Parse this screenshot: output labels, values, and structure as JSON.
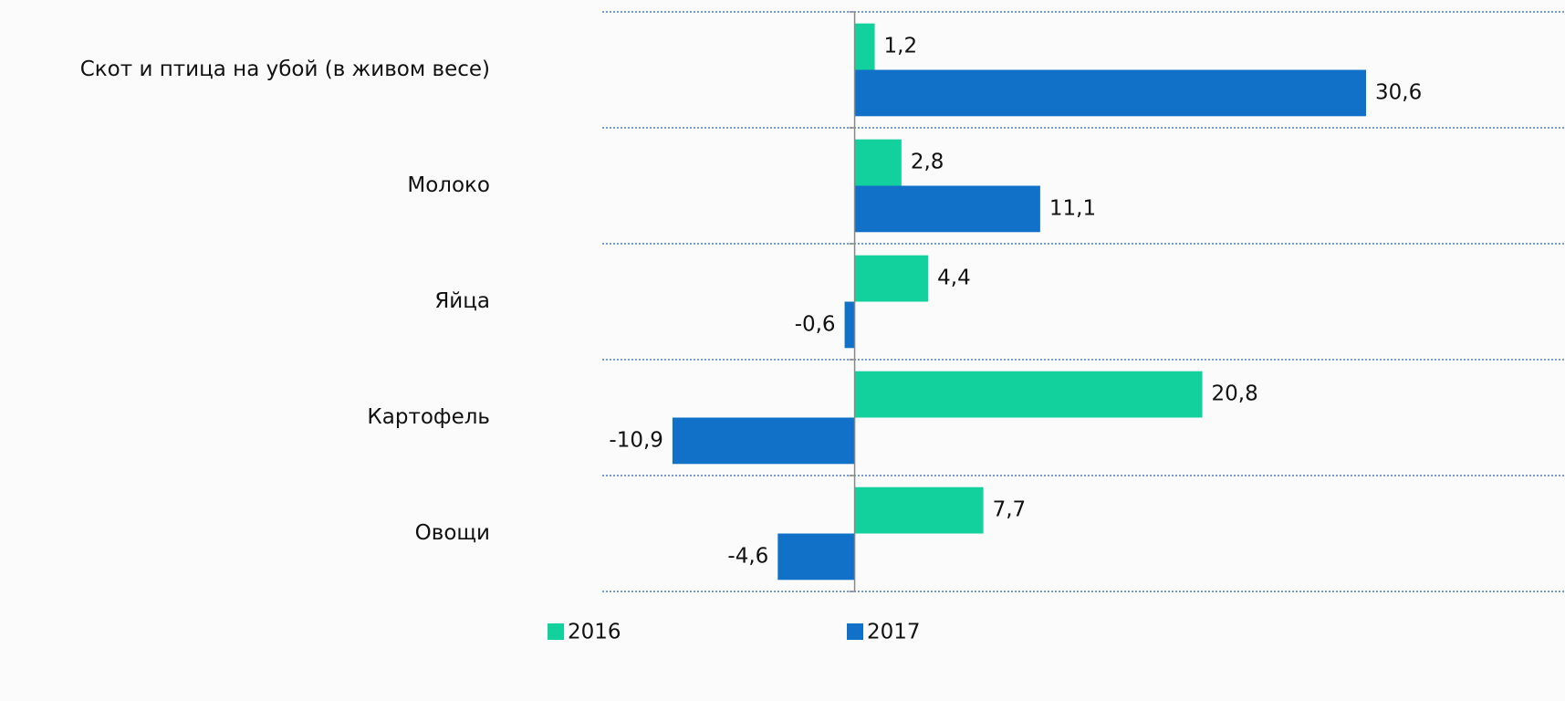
{
  "chart_data": {
    "type": "bar",
    "orientation": "horizontal",
    "categories": [
      "Скот и птица на убой (в живом весе)",
      "Молоко",
      "Яйца",
      "Картофель",
      "Овощи"
    ],
    "series": [
      {
        "name": "2016",
        "color": "#13d19c",
        "values": [
          1.2,
          2.8,
          4.4,
          20.8,
          7.7
        ],
        "value_labels": [
          "1,2",
          "2,8",
          "4,4",
          "20,8",
          "7,7"
        ]
      },
      {
        "name": "2017",
        "color": "#1170c8",
        "values": [
          30.6,
          11.1,
          -0.6,
          -10.9,
          -4.6
        ],
        "value_labels": [
          "30,6",
          "11,1",
          "-0,6",
          "-10,9",
          "-4,6"
        ]
      }
    ],
    "xlim": [
      -15.1,
      42.5
    ],
    "legend": "bottom"
  }
}
